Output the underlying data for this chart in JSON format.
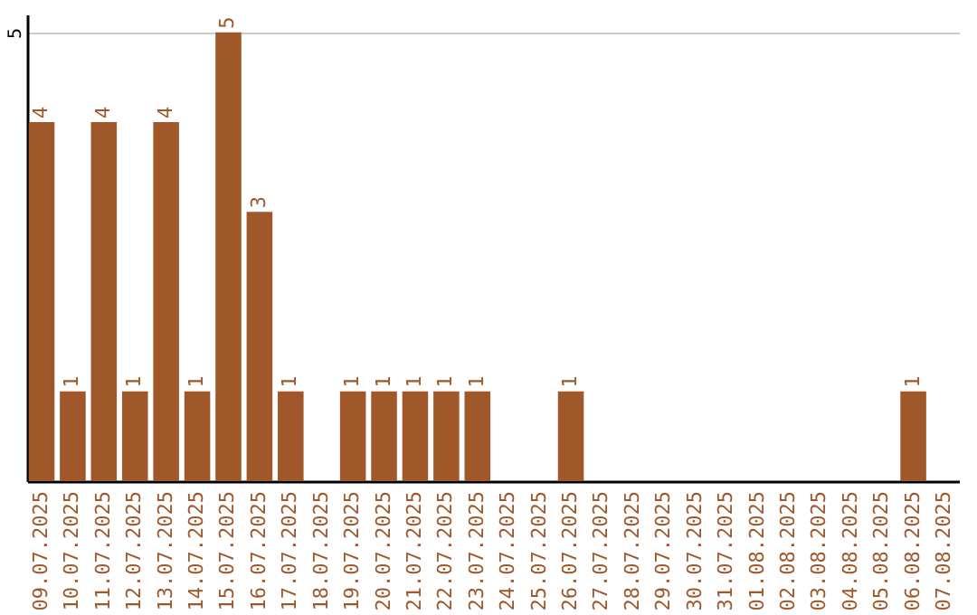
{
  "chart_data": {
    "type": "bar",
    "categories": [
      "09.07.2025",
      "10.07.2025",
      "11.07.2025",
      "12.07.2025",
      "13.07.2025",
      "14.07.2025",
      "15.07.2025",
      "16.07.2025",
      "17.07.2025",
      "18.07.2025",
      "19.07.2025",
      "20.07.2025",
      "21.07.2025",
      "22.07.2025",
      "23.07.2025",
      "24.07.2025",
      "25.07.2025",
      "26.07.2025",
      "27.07.2025",
      "28.07.2025",
      "29.07.2025",
      "30.07.2025",
      "31.07.2025",
      "01.08.2025",
      "02.08.2025",
      "03.08.2025",
      "04.08.2025",
      "05.08.2025",
      "06.08.2025",
      "07.08.2025"
    ],
    "values": [
      4,
      1,
      4,
      1,
      4,
      1,
      5,
      3,
      1,
      0,
      1,
      1,
      1,
      1,
      1,
      0,
      0,
      1,
      0,
      0,
      0,
      0,
      0,
      0,
      0,
      0,
      0,
      0,
      1,
      0
    ],
    "value_labels": [
      "4",
      "1",
      "4",
      "1",
      "4",
      "1",
      "5",
      "3",
      "1",
      null,
      "1",
      "1",
      "1",
      "1",
      "1",
      null,
      null,
      "1",
      null,
      null,
      null,
      null,
      null,
      null,
      null,
      null,
      null,
      null,
      "1",
      null
    ],
    "color": "#a0582a",
    "ylim": [
      0,
      5.2
    ],
    "yticks": [
      5
    ],
    "grid": "y"
  }
}
